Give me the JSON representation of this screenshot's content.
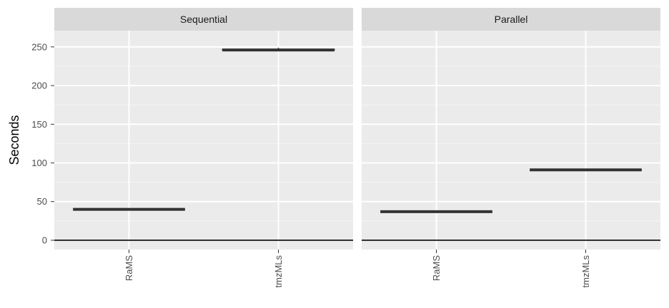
{
  "chart_data": {
    "type": "boxplot",
    "ylabel": "Seconds",
    "xlabel": "",
    "ylim": [
      -12,
      271
    ],
    "yticks": [
      0,
      50,
      100,
      150,
      200,
      250
    ],
    "categories": [
      "RaMS",
      "tmzMLs"
    ],
    "hline": 0,
    "grid": true,
    "facets": [
      {
        "label": "Sequential",
        "boxes": [
          {
            "category": "RaMS",
            "median": 40,
            "q1": 40,
            "q3": 40
          },
          {
            "category": "tmzMLs",
            "median": 246,
            "q1": 246,
            "q3": 247,
            "whisker_high": 249
          }
        ]
      },
      {
        "label": "Parallel",
        "boxes": [
          {
            "category": "RaMS",
            "median": 37,
            "q1": 37,
            "q3": 37
          },
          {
            "category": "tmzMLs",
            "median": 91,
            "q1": 91,
            "q3": 91
          }
        ]
      }
    ]
  },
  "colors": {
    "panel_bg": "#ebebeb",
    "strip_bg": "#d9d9d9",
    "grid_major": "#ffffff",
    "grid_minor": "#f5f5f5",
    "box_line": "#333333",
    "zero_line": "#000000"
  }
}
